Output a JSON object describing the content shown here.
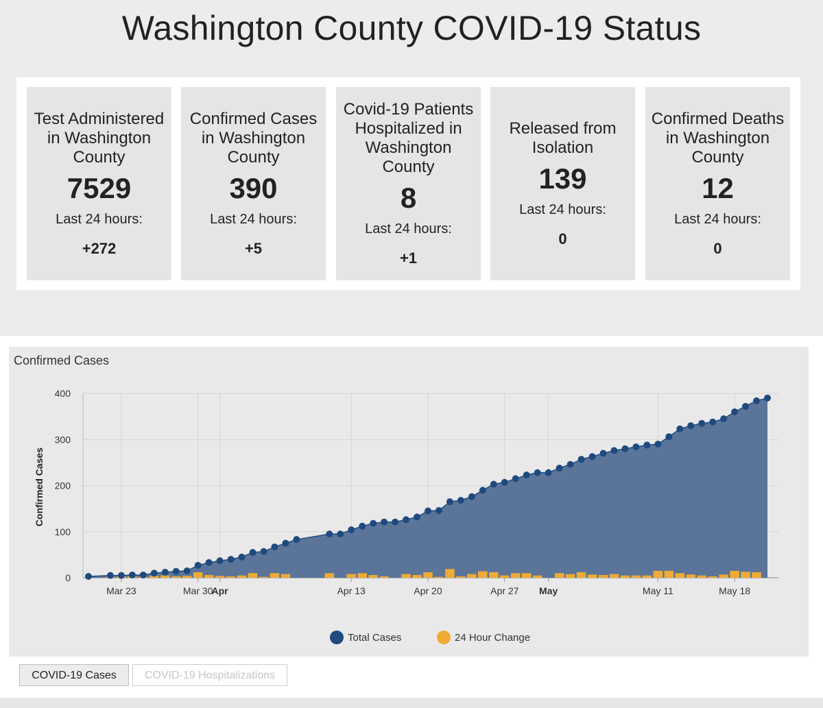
{
  "page": {
    "title": "Washington County COVID-19 Status"
  },
  "stats": [
    {
      "label": "Test Administered in Washington County",
      "value": "7529",
      "sub": "Last 24 hours:",
      "change": "+272"
    },
    {
      "label": "Confirmed Cases in Washington County",
      "value": "390",
      "sub": "Last 24 hours:",
      "change": "+5"
    },
    {
      "label": "Covid-19 Patients Hospitalized in Washington County",
      "value": "8",
      "sub": "Last 24 hours:",
      "change": "+1"
    },
    {
      "label": "Released from Isolation",
      "value": "139",
      "sub": "Last 24 hours:",
      "change": "0"
    },
    {
      "label": "Confirmed Deaths in Washington County",
      "value": "12",
      "sub": "Last 24 hours:",
      "change": "0"
    }
  ],
  "tabs": {
    "cases": "COVID-19 Cases",
    "hospitalizations": "COVID-19 Hospitalizations"
  },
  "colors": {
    "total": "#1f4a7e",
    "area": "#5a7599",
    "change": "#f1aa34",
    "grid": "#d4d4d4"
  },
  "chart_data": {
    "type": "area",
    "title": "Confirmed Cases",
    "ylabel": "Confirmed Cases",
    "ylim": [
      0,
      400
    ],
    "yticks": [
      0,
      100,
      200,
      300,
      400
    ],
    "grid": true,
    "legend_position": "bottom-center",
    "x_start_date": "Mar 20",
    "x_end_date": "May 20",
    "xticks": [
      {
        "label": "Mar 23",
        "day": 3,
        "bold": false
      },
      {
        "label": "Mar 30",
        "day": 10,
        "bold": false
      },
      {
        "label": "Apr",
        "day": 12,
        "bold": true
      },
      {
        "label": "Apr 13",
        "day": 24,
        "bold": false
      },
      {
        "label": "Apr 20",
        "day": 31,
        "bold": false
      },
      {
        "label": "Apr 27",
        "day": 38,
        "bold": false
      },
      {
        "label": "May",
        "day": 42,
        "bold": true
      },
      {
        "label": "May 11",
        "day": 52,
        "bold": false
      },
      {
        "label": "May 18",
        "day": 59,
        "bold": false
      }
    ],
    "series": [
      {
        "name": "Total Cases",
        "points": [
          [
            0,
            3
          ],
          [
            2,
            5
          ],
          [
            3,
            5
          ],
          [
            4,
            6
          ],
          [
            5,
            6
          ],
          [
            6,
            10
          ],
          [
            7,
            12
          ],
          [
            8,
            14
          ],
          [
            9,
            15
          ],
          [
            10,
            27
          ],
          [
            11,
            33
          ],
          [
            12,
            37
          ],
          [
            13,
            40
          ],
          [
            14,
            45
          ],
          [
            15,
            55
          ],
          [
            16,
            57
          ],
          [
            17,
            67
          ],
          [
            18,
            75
          ],
          [
            19,
            83
          ],
          [
            22,
            95
          ],
          [
            23,
            95
          ],
          [
            24,
            104
          ],
          [
            25,
            112
          ],
          [
            26,
            118
          ],
          [
            27,
            121
          ],
          [
            28,
            121
          ],
          [
            29,
            126
          ],
          [
            30,
            132
          ],
          [
            31,
            145
          ],
          [
            32,
            146
          ],
          [
            33,
            165
          ],
          [
            34,
            168
          ],
          [
            35,
            176
          ],
          [
            36,
            190
          ],
          [
            37,
            203
          ],
          [
            38,
            207
          ],
          [
            39,
            215
          ],
          [
            40,
            223
          ],
          [
            41,
            228
          ],
          [
            42,
            228
          ],
          [
            43,
            238
          ],
          [
            44,
            246
          ],
          [
            45,
            257
          ],
          [
            46,
            263
          ],
          [
            47,
            270
          ],
          [
            48,
            276
          ],
          [
            49,
            280
          ],
          [
            50,
            284
          ],
          [
            51,
            288
          ],
          [
            52,
            290
          ],
          [
            53,
            306
          ],
          [
            54,
            323
          ],
          [
            55,
            330
          ],
          [
            56,
            335
          ],
          [
            57,
            338
          ],
          [
            58,
            345
          ],
          [
            59,
            360
          ],
          [
            60,
            372
          ],
          [
            61,
            384
          ],
          [
            62,
            390
          ]
        ]
      },
      {
        "name": "24 Hour Change",
        "points": [
          [
            2,
            2
          ],
          [
            3,
            3
          ],
          [
            4,
            3
          ],
          [
            5,
            2
          ],
          [
            6,
            4
          ],
          [
            7,
            5
          ],
          [
            8,
            3
          ],
          [
            9,
            4
          ],
          [
            10,
            12
          ],
          [
            11,
            6
          ],
          [
            12,
            4
          ],
          [
            13,
            3
          ],
          [
            14,
            5
          ],
          [
            15,
            10
          ],
          [
            16,
            2
          ],
          [
            17,
            10
          ],
          [
            18,
            8
          ],
          [
            22,
            10
          ],
          [
            24,
            8
          ],
          [
            25,
            10
          ],
          [
            26,
            6
          ],
          [
            27,
            3
          ],
          [
            29,
            8
          ],
          [
            30,
            6
          ],
          [
            31,
            12
          ],
          [
            32,
            2
          ],
          [
            33,
            19
          ],
          [
            34,
            3
          ],
          [
            35,
            8
          ],
          [
            36,
            14
          ],
          [
            37,
            12
          ],
          [
            38,
            5
          ],
          [
            39,
            10
          ],
          [
            40,
            10
          ],
          [
            41,
            5
          ],
          [
            43,
            10
          ],
          [
            44,
            8
          ],
          [
            45,
            12
          ],
          [
            46,
            7
          ],
          [
            47,
            6
          ],
          [
            48,
            8
          ],
          [
            49,
            5
          ],
          [
            50,
            5
          ],
          [
            51,
            5
          ],
          [
            52,
            15
          ],
          [
            53,
            15
          ],
          [
            54,
            10
          ],
          [
            55,
            7
          ],
          [
            56,
            5
          ],
          [
            57,
            3
          ],
          [
            58,
            7
          ],
          [
            59,
            15
          ],
          [
            60,
            13
          ],
          [
            61,
            12
          ]
        ]
      }
    ]
  }
}
